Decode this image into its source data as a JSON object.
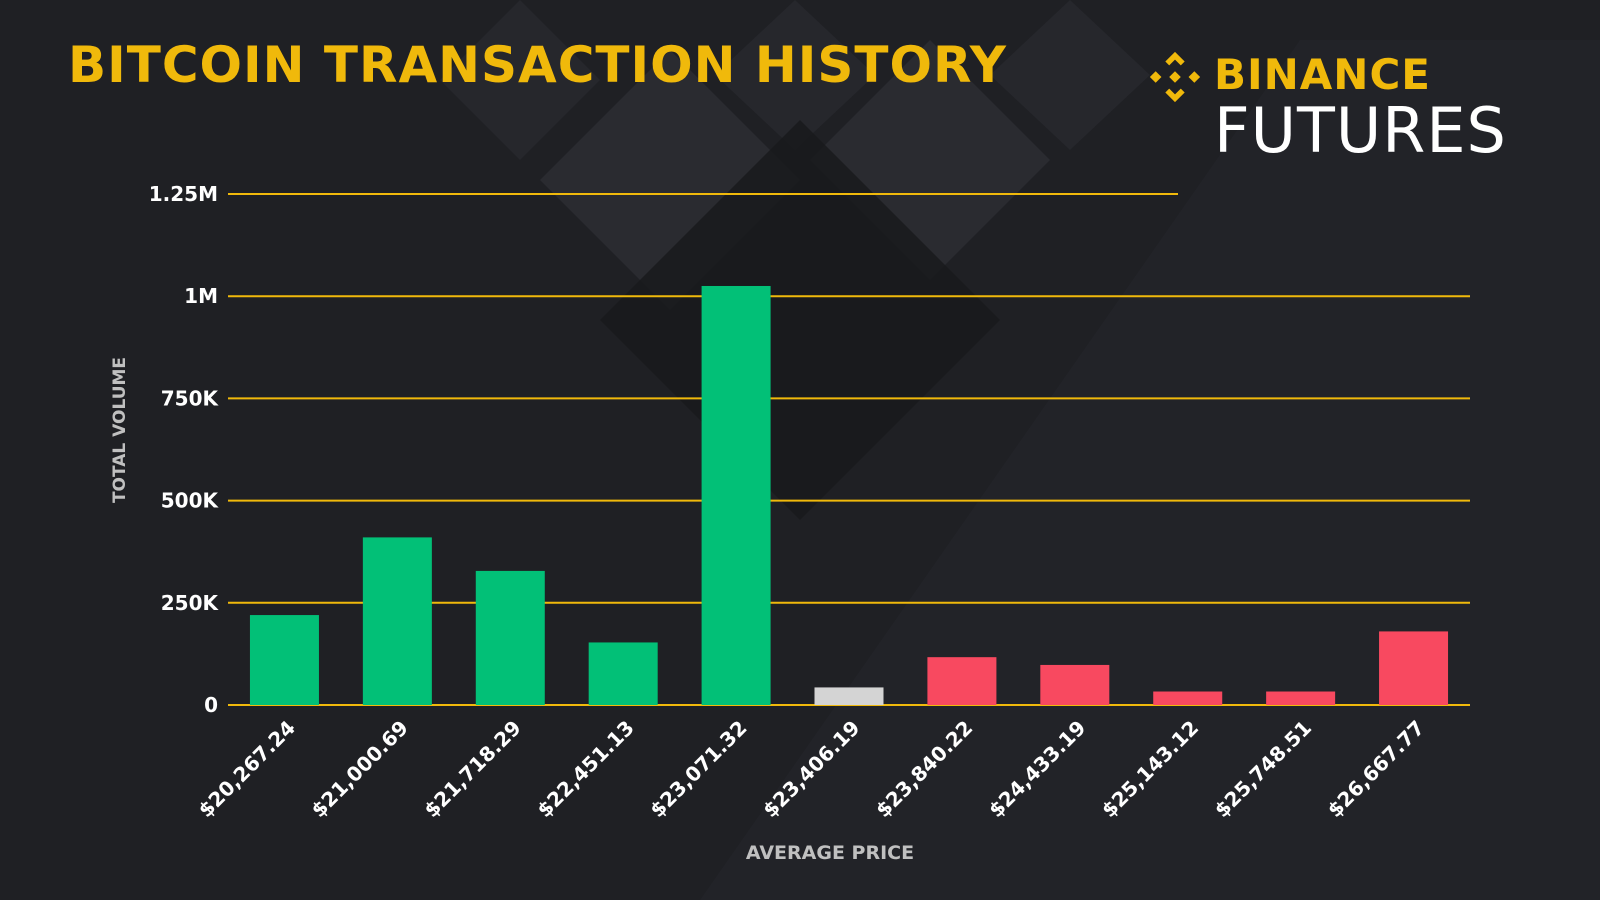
{
  "header": {
    "title": "BITCOIN TRANSACTION HISTORY",
    "brand_name": "BINANCE",
    "brand_sub": "FUTURES",
    "brand_icon": "binance-diamond-icon"
  },
  "colors": {
    "background": "#1f2024",
    "accent": "#f0b90b",
    "gridline": "#f0b90b",
    "up": "#02c077",
    "neutral": "#d4d4d4",
    "down": "#f84960"
  },
  "chart_data": {
    "type": "bar",
    "xlabel": "AVERAGE PRICE",
    "ylabel": "TOTAL VOLUME",
    "ylim": [
      0,
      1250000
    ],
    "grid": true,
    "y_ticks": [
      {
        "value": 0,
        "label": "0"
      },
      {
        "value": 250000,
        "label": "250K"
      },
      {
        "value": 500000,
        "label": "500K"
      },
      {
        "value": 750000,
        "label": "750K"
      },
      {
        "value": 1000000,
        "label": "1M"
      },
      {
        "value": 1250000,
        "label": "1.25M"
      }
    ],
    "categories": [
      "$20,267.24",
      "$21,000.69",
      "$21,718.29",
      "$22,451.13",
      "$23,071.32",
      "$23,406.19",
      "$23,840.22",
      "$24,433.19",
      "$25,143.12",
      "$25,748.51",
      "$26,667.77"
    ],
    "values": [
      220000,
      410000,
      328000,
      153000,
      1025000,
      43000,
      117000,
      98000,
      33000,
      33000,
      180000
    ],
    "bar_status": [
      "up",
      "up",
      "up",
      "up",
      "up",
      "neutral",
      "down",
      "down",
      "down",
      "down",
      "down"
    ]
  }
}
